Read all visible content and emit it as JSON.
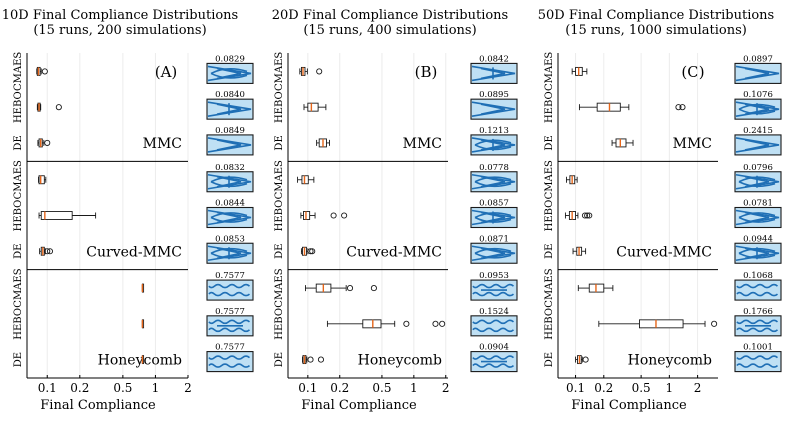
{
  "chart_data": [
    {
      "type": "boxplot",
      "label": "(A)",
      "title": "10D Final Compliance Distributions",
      "subtitle": "(15 runs, 200 simulations)",
      "xlabel": "Final Compliance",
      "xscale": "log",
      "xlim": [
        0.065,
        2.0
      ],
      "xticks": [
        0.1,
        0.2,
        0.5,
        1,
        2
      ],
      "xtick_labels": [
        "0.1",
        "0.2",
        "0.5",
        "1",
        "2"
      ],
      "groups": [
        {
          "name": "MMC",
          "rows": [
            {
              "name": "CMAES",
              "q1": 0.081,
              "median": 0.083,
              "q3": 0.086,
              "wlo": 0.08,
              "whi": 0.088,
              "outliers": [
                0.095
              ],
              "best": "0.0829"
            },
            {
              "name": "HEBO",
              "q1": 0.082,
              "median": 0.084,
              "q3": 0.086,
              "wlo": 0.081,
              "whi": 0.087,
              "outliers": [
                0.128
              ],
              "best": "0.0840"
            },
            {
              "name": "DE",
              "q1": 0.084,
              "median": 0.087,
              "q3": 0.09,
              "wlo": 0.082,
              "whi": 0.093,
              "outliers": [
                0.1
              ],
              "best": "0.0849"
            }
          ]
        },
        {
          "name": "Curved-MMC",
          "rows": [
            {
              "name": "CMAES",
              "q1": 0.084,
              "median": 0.087,
              "q3": 0.094,
              "wlo": 0.083,
              "whi": 0.097,
              "outliers": [],
              "best": "0.0832"
            },
            {
              "name": "HEBO",
              "q1": 0.088,
              "median": 0.095,
              "q3": 0.17,
              "wlo": 0.084,
              "whi": 0.28,
              "outliers": [],
              "best": "0.0844"
            },
            {
              "name": "DE",
              "q1": 0.088,
              "median": 0.091,
              "q3": 0.094,
              "wlo": 0.085,
              "whi": 0.096,
              "outliers": [
                0.1,
                0.106
              ],
              "best": "0.0853"
            }
          ]
        },
        {
          "name": "Honeycomb",
          "rows": [
            {
              "name": "CMAES",
              "q1": 0.7577,
              "median": 0.7577,
              "q3": 0.7577,
              "wlo": 0.7577,
              "whi": 0.7577,
              "outliers": [],
              "best": "0.7577"
            },
            {
              "name": "HEBO",
              "q1": 0.7577,
              "median": 0.7577,
              "q3": 0.7577,
              "wlo": 0.7577,
              "whi": 0.7577,
              "outliers": [],
              "best": "0.7577"
            },
            {
              "name": "DE",
              "q1": 0.7577,
              "median": 0.7577,
              "q3": 0.7577,
              "wlo": 0.7577,
              "whi": 0.7577,
              "outliers": [],
              "best": "0.7577"
            }
          ]
        }
      ]
    },
    {
      "type": "boxplot",
      "label": "(B)",
      "title": "20D Final Compliance Distributions",
      "subtitle": "(15 runs, 400 simulations)",
      "xlabel": "Final Compliance",
      "xscale": "log",
      "xlim": [
        0.065,
        2.1
      ],
      "xticks": [
        0.1,
        0.2,
        0.5,
        1,
        2
      ],
      "xtick_labels": [
        "0.1",
        "0.2",
        "0.5",
        "1",
        "2"
      ],
      "groups": [
        {
          "name": "MMC",
          "rows": [
            {
              "name": "CMAES",
              "q1": 0.087,
              "median": 0.09,
              "q3": 0.094,
              "wlo": 0.084,
              "whi": 0.099,
              "outliers": [
                0.128
              ],
              "best": "0.0842"
            },
            {
              "name": "HEBO",
              "q1": 0.1,
              "median": 0.108,
              "q3": 0.125,
              "wlo": 0.092,
              "whi": 0.148,
              "outliers": [],
              "best": "0.0895"
            },
            {
              "name": "DE",
              "q1": 0.128,
              "median": 0.139,
              "q3": 0.15,
              "wlo": 0.121,
              "whi": 0.16,
              "outliers": [],
              "best": "0.1213"
            }
          ]
        },
        {
          "name": "Curved-MMC",
          "rows": [
            {
              "name": "CMAES",
              "q1": 0.088,
              "median": 0.093,
              "q3": 0.101,
              "wlo": 0.08,
              "whi": 0.114,
              "outliers": [],
              "best": "0.0778"
            },
            {
              "name": "HEBO",
              "q1": 0.091,
              "median": 0.096,
              "q3": 0.104,
              "wlo": 0.086,
              "whi": 0.117,
              "outliers": [
                0.175,
                0.22
              ],
              "best": "0.0857"
            },
            {
              "name": "DE",
              "q1": 0.089,
              "median": 0.093,
              "q3": 0.097,
              "wlo": 0.087,
              "whi": 0.1,
              "outliers": [
                0.106,
                0.11
              ],
              "best": "0.0871"
            }
          ]
        },
        {
          "name": "Honeycomb",
          "rows": [
            {
              "name": "CMAES",
              "q1": 0.12,
              "median": 0.14,
              "q3": 0.165,
              "wlo": 0.095,
              "whi": 0.23,
              "outliers": [
                0.25,
                0.42
              ],
              "best": "0.0953"
            },
            {
              "name": "HEBO",
              "q1": 0.33,
              "median": 0.41,
              "q3": 0.49,
              "wlo": 0.153,
              "whi": 0.66,
              "outliers": [
                0.85,
                1.6,
                1.85
              ],
              "best": "0.1524"
            },
            {
              "name": "DE",
              "q1": 0.09,
              "median": 0.093,
              "q3": 0.096,
              "wlo": 0.089,
              "whi": 0.098,
              "outliers": [
                0.106,
                0.133
              ],
              "best": "0.0904"
            }
          ]
        }
      ]
    },
    {
      "type": "boxplot",
      "label": "(C)",
      "title": "50D Final Compliance Distributions",
      "subtitle": "(15 runs, 1000 simulations)",
      "xlabel": "Final Compliance",
      "xscale": "log",
      "xlim": [
        0.065,
        3.3
      ],
      "xticks": [
        0.1,
        0.2,
        0.5,
        1,
        2
      ],
      "xtick_labels": [
        "0.1",
        "0.2",
        "0.5",
        "1",
        "2"
      ],
      "groups": [
        {
          "name": "MMC",
          "rows": [
            {
              "name": "CMAES",
              "q1": 0.1,
              "median": 0.108,
              "q3": 0.118,
              "wlo": 0.092,
              "whi": 0.132,
              "outliers": [],
              "best": "0.0897"
            },
            {
              "name": "HEBO",
              "q1": 0.17,
              "median": 0.23,
              "q3": 0.3,
              "wlo": 0.11,
              "whi": 0.37,
              "outliers": [
                1.25,
                1.38
              ],
              "best": "0.1076"
            },
            {
              "name": "DE",
              "q1": 0.27,
              "median": 0.3,
              "q3": 0.345,
              "wlo": 0.245,
              "whi": 0.41,
              "outliers": [],
              "best": "0.2415"
            }
          ]
        },
        {
          "name": "Curved-MMC",
          "rows": [
            {
              "name": "CMAES",
              "q1": 0.087,
              "median": 0.092,
              "q3": 0.098,
              "wlo": 0.08,
              "whi": 0.104,
              "outliers": [],
              "best": "0.0796"
            },
            {
              "name": "HEBO",
              "q1": 0.086,
              "median": 0.092,
              "q3": 0.1,
              "wlo": 0.078,
              "whi": 0.106,
              "outliers": [
                0.126,
                0.133,
                0.14
              ],
              "best": "0.0781"
            },
            {
              "name": "DE",
              "q1": 0.103,
              "median": 0.109,
              "q3": 0.116,
              "wlo": 0.094,
              "whi": 0.128,
              "outliers": [],
              "best": "0.0944"
            }
          ]
        },
        {
          "name": "Honeycomb",
          "rows": [
            {
              "name": "CMAES",
              "q1": 0.14,
              "median": 0.165,
              "q3": 0.2,
              "wlo": 0.107,
              "whi": 0.25,
              "outliers": [],
              "best": "0.1068"
            },
            {
              "name": "HEBO",
              "q1": 0.48,
              "median": 0.72,
              "q3": 1.4,
              "wlo": 0.177,
              "whi": 2.4,
              "outliers": [
                3.0
              ],
              "best": "0.1766"
            },
            {
              "name": "DE",
              "q1": 0.105,
              "median": 0.11,
              "q3": 0.115,
              "wlo": 0.1,
              "whi": 0.118,
              "outliers": [
                0.128
              ],
              "best": "0.1001"
            }
          ]
        }
      ]
    }
  ],
  "colors": {
    "box_stroke": "#1a1a1a",
    "median": "#e6661a",
    "outlier": "#1a1a1a",
    "grid": "#ececec",
    "thumb_fill": "#bfe0f4",
    "thumb_stroke": "#1f6fb5",
    "thumb_frame": "#1a1a1a"
  }
}
